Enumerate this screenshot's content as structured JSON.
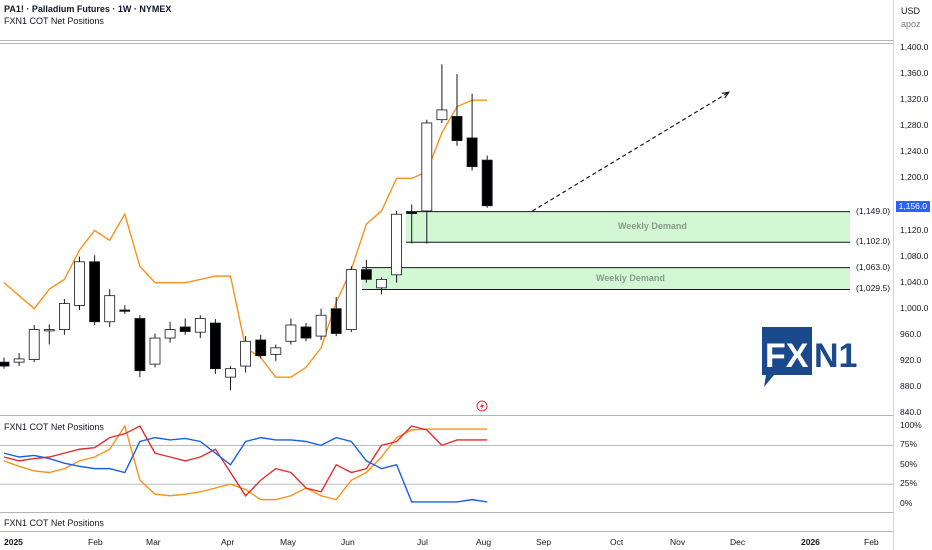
{
  "header": {
    "symbol_line": "PA1! · Palladium Futures · 1W · NYMEX",
    "indicator_name": "FXN1 COT Net Positions"
  },
  "axis_corner": {
    "currency": "USD",
    "scale_label": "apoz"
  },
  "price_axis_ticks": [
    "1,400.0",
    "1,360.0",
    "1,320.0",
    "1,280.0",
    "1,240.0",
    "1,200.0",
    "1,120.0",
    "1,080.0",
    "1,040.0",
    "1,000.0",
    "960.0",
    "920.0",
    "880.0",
    "840.0"
  ],
  "last_price": "1,156.0",
  "zones": [
    {
      "label": "Weekly Demand",
      "top_label": "(1,149.0)",
      "bottom_label": "(1,102.0)",
      "top": 1149.0,
      "bottom": 1102.0
    },
    {
      "label": "Weekly Demand",
      "top_label": "(1,063.0)",
      "bottom_label": "(1,029.5)",
      "top": 1063.0,
      "bottom": 1029.5
    }
  ],
  "indicator_pane": {
    "title": "FXN1 COT Net Positions",
    "ticks": [
      "100%",
      "75%",
      "50%",
      "25%",
      "0%"
    ]
  },
  "bottom_pane": {
    "title": "FXN1 COT Net Positions"
  },
  "time_axis": [
    "2025",
    "Feb",
    "Mar",
    "Apr",
    "May",
    "Jun",
    "Jul",
    "Aug",
    "Sep",
    "Oct",
    "Nov",
    "Dec",
    "2026",
    "Feb"
  ],
  "logo": {
    "text_a": "FX",
    "text_b": "N1"
  },
  "colors": {
    "orange": "#f7931a",
    "red": "#e02e2e",
    "blue": "#1a5fe0",
    "zone_fill": "#c8f5c8",
    "axis_tag": "#2962ff"
  },
  "chart_data": {
    "type": "candlestick",
    "price_range": [
      840,
      1410
    ],
    "candles": [
      {
        "o": 918,
        "h": 925,
        "c": 912,
        "l": 908
      },
      {
        "o": 918,
        "h": 932,
        "c": 923,
        "l": 912
      },
      {
        "o": 922,
        "h": 975,
        "c": 968,
        "l": 918
      },
      {
        "o": 966,
        "h": 976,
        "c": 968,
        "l": 945
      },
      {
        "o": 968,
        "h": 1015,
        "c": 1008,
        "l": 960
      },
      {
        "o": 1005,
        "h": 1080,
        "c": 1072,
        "l": 998
      },
      {
        "o": 1072,
        "h": 1082,
        "c": 980,
        "l": 975
      },
      {
        "o": 980,
        "h": 1030,
        "c": 1020,
        "l": 972
      },
      {
        "o": 998,
        "h": 1005,
        "c": 996,
        "l": 992
      },
      {
        "o": 985,
        "h": 990,
        "c": 905,
        "l": 895
      },
      {
        "o": 915,
        "h": 962,
        "c": 955,
        "l": 910
      },
      {
        "o": 955,
        "h": 980,
        "c": 968,
        "l": 948
      },
      {
        "o": 972,
        "h": 985,
        "c": 965,
        "l": 960
      },
      {
        "o": 964,
        "h": 990,
        "c": 985,
        "l": 955
      },
      {
        "o": 978,
        "h": 984,
        "c": 908,
        "l": 900
      },
      {
        "o": 895,
        "h": 912,
        "c": 908,
        "l": 875
      },
      {
        "o": 912,
        "h": 958,
        "c": 950,
        "l": 902
      },
      {
        "o": 952,
        "h": 960,
        "c": 928,
        "l": 924
      },
      {
        "o": 930,
        "h": 945,
        "c": 940,
        "l": 920
      },
      {
        "o": 950,
        "h": 985,
        "c": 975,
        "l": 945
      },
      {
        "o": 972,
        "h": 978,
        "c": 955,
        "l": 950
      },
      {
        "o": 958,
        "h": 1000,
        "c": 990,
        "l": 952
      },
      {
        "o": 1000,
        "h": 1018,
        "c": 962,
        "l": 958
      },
      {
        "o": 968,
        "h": 1065,
        "c": 1060,
        "l": 964
      },
      {
        "o": 1060,
        "h": 1075,
        "c": 1045,
        "l": 1040
      },
      {
        "o": 1032,
        "h": 1048,
        "c": 1045,
        "l": 1022
      },
      {
        "o": 1052,
        "h": 1150,
        "c": 1145,
        "l": 1040
      },
      {
        "o": 1148,
        "h": 1160,
        "c": 1146,
        "l": 1100
      },
      {
        "o": 1150,
        "h": 1290,
        "c": 1285,
        "l": 1100
      },
      {
        "o": 1290,
        "h": 1375,
        "c": 1305,
        "l": 1285
      },
      {
        "o": 1295,
        "h": 1360,
        "c": 1258,
        "l": 1250
      },
      {
        "o": 1262,
        "h": 1330,
        "c": 1218,
        "l": 1212
      },
      {
        "o": 1228,
        "h": 1235,
        "c": 1158,
        "l": 1155
      }
    ],
    "projection": {
      "from_index": 35,
      "from_price": 1150,
      "to_index": 48,
      "to_price": 1332
    },
    "orange_overlay": [
      1040,
      1020,
      1000,
      1030,
      1045,
      1090,
      1120,
      1105,
      1145,
      1065,
      1040,
      1040,
      1040,
      1045,
      1050,
      1050,
      940,
      925,
      895,
      895,
      910,
      940,
      1010,
      1060,
      1130,
      1150,
      1200,
      1200,
      1210,
      1270,
      1310,
      1320,
      1320
    ],
    "cot_series": [
      {
        "name": "orange",
        "values": [
          55,
          48,
          42,
          40,
          45,
          55,
          60,
          70,
          100,
          30,
          12,
          10,
          12,
          15,
          20,
          25,
          18,
          5,
          5,
          10,
          20,
          10,
          5,
          30,
          40,
          60,
          85,
          95,
          96,
          96,
          96,
          96,
          96
        ]
      },
      {
        "name": "red",
        "values": [
          60,
          55,
          58,
          60,
          65,
          70,
          72,
          85,
          90,
          100,
          65,
          60,
          55,
          60,
          70,
          40,
          10,
          30,
          45,
          40,
          20,
          15,
          50,
          40,
          45,
          75,
          80,
          100,
          95,
          75,
          82,
          82,
          82
        ]
      },
      {
        "name": "blue",
        "values": [
          65,
          60,
          62,
          58,
          52,
          48,
          45,
          45,
          40,
          80,
          85,
          82,
          84,
          80,
          65,
          50,
          80,
          85,
          82,
          82,
          80,
          75,
          85,
          80,
          55,
          45,
          50,
          2,
          2,
          2,
          2,
          5,
          2
        ]
      }
    ]
  }
}
